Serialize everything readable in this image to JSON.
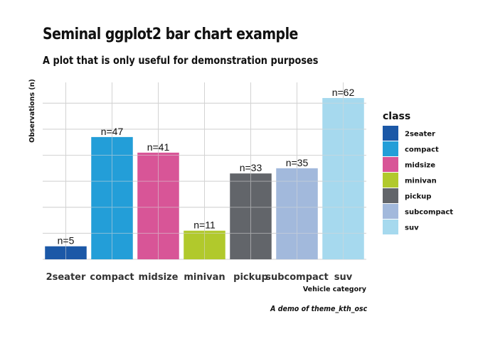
{
  "chart_data": {
    "type": "bar",
    "title": "Seminal ggplot2 bar chart example",
    "subtitle": "A plot that is only useful for demonstration purposes",
    "caption": "A demo of theme_kth_osc",
    "xlabel": "Vehicle category",
    "ylabel": "Observations (n)",
    "categories": [
      "2seater",
      "compact",
      "midsize",
      "minivan",
      "pickup",
      "subcompact",
      "suv"
    ],
    "values": [
      5,
      47,
      41,
      11,
      33,
      35,
      62
    ],
    "data_labels": [
      "n=5",
      "n=47",
      "n=41",
      "n=11",
      "n=33",
      "n=35",
      "n=62"
    ],
    "colors": [
      "#1b58a7",
      "#239ed8",
      "#d85597",
      "#b1c92c",
      "#62656a",
      "#a2b9dc",
      "#a6d9ee"
    ],
    "ylim": [
      0,
      68
    ],
    "y_gridlines": [
      10,
      20,
      30,
      40,
      50,
      60
    ],
    "grid": true,
    "y_tick_labels_shown": false,
    "legend": {
      "title": "class",
      "placement": "right",
      "items": [
        "2seater",
        "compact",
        "midsize",
        "minivan",
        "pickup",
        "subcompact",
        "suv"
      ]
    }
  }
}
